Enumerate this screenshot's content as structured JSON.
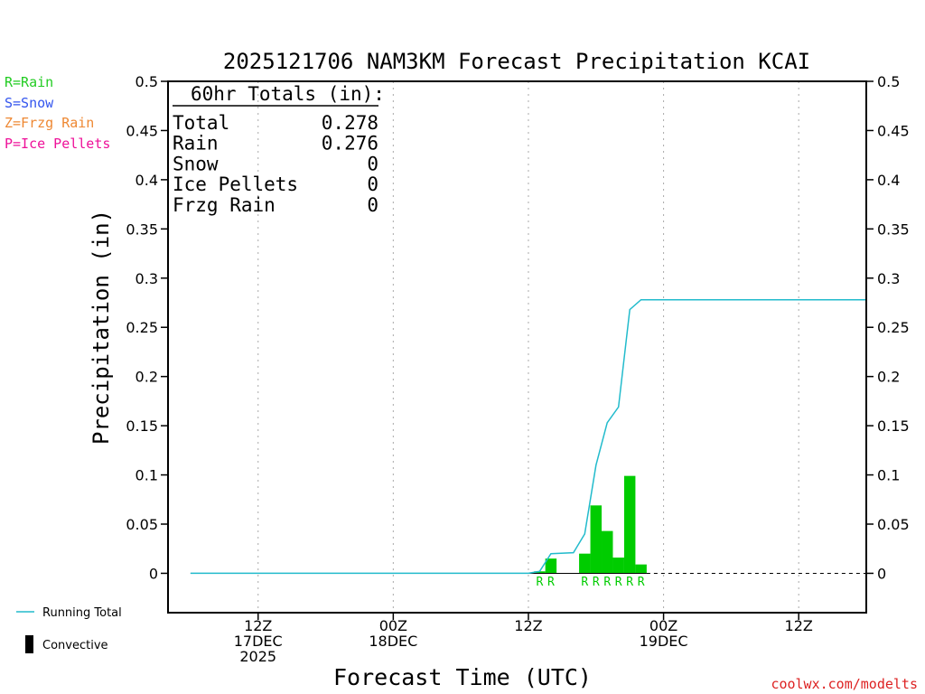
{
  "page": {
    "title": "2025121706 NAM3KM Forecast Precipitation KCAI",
    "xlabel": "Forecast Time (UTC)",
    "ylabel": "Precipitation (in)",
    "credit": "coolwx.com/modelts"
  },
  "ptype_legend": [
    {
      "label": "R=Rain",
      "color": "#22cc22"
    },
    {
      "label": "S=Snow",
      "color": "#3355ee"
    },
    {
      "label": "Z=Frzg Rain",
      "color": "#ee8833"
    },
    {
      "label": "P=Ice Pellets",
      "color": "#ee1199"
    }
  ],
  "series_legend": {
    "running_total": "Running Total",
    "convective": "Convective"
  },
  "totals": {
    "heading": "60hr Totals (in):",
    "rows": [
      {
        "label": "Total",
        "value": "0.278"
      },
      {
        "label": "Rain",
        "value": "0.276"
      },
      {
        "label": "Snow",
        "value": "0"
      },
      {
        "label": "Ice Pellets",
        "value": "0"
      },
      {
        "label": "Frzg Rain",
        "value": "0"
      }
    ]
  },
  "colors": {
    "rain_bar": "#00cc00",
    "running_total": "#22bbcc",
    "axis": "#000000",
    "grid": "#aaaaaa",
    "credit": "#dd2222"
  },
  "chart_data": {
    "type": "bar",
    "title": "2025121706 NAM3KM Forecast Precipitation KCAI",
    "xlabel": "Forecast Time (UTC)",
    "ylabel": "Precipitation (in)",
    "ylim": [
      -0.04,
      0.5
    ],
    "xlim_hours_since_init": [
      -2,
      60
    ],
    "yticks": [
      0,
      0.05,
      0.1,
      0.15,
      0.2,
      0.25,
      0.3,
      0.35,
      0.4,
      0.45,
      0.5
    ],
    "ytick_labels": [
      "0",
      "0.05",
      "0.1",
      "0.15",
      "0.2",
      "0.25",
      "0.3",
      "0.35",
      "0.4",
      "0.45",
      "0.5"
    ],
    "xticks": [
      {
        "hour": 6,
        "lines": [
          "12Z",
          "17DEC",
          "2025"
        ]
      },
      {
        "hour": 18,
        "lines": [
          "00Z",
          "18DEC"
        ]
      },
      {
        "hour": 30,
        "lines": [
          "12Z"
        ]
      },
      {
        "hour": 42,
        "lines": [
          "00Z",
          "19DEC"
        ]
      },
      {
        "hour": 54,
        "lines": [
          "12Z"
        ]
      }
    ],
    "grid": true,
    "bars": [
      {
        "hour": 31,
        "value": 0.002,
        "ptype": "R"
      },
      {
        "hour": 32,
        "value": 0.015,
        "ptype": "R"
      },
      {
        "hour": 35,
        "value": 0.02,
        "ptype": "R"
      },
      {
        "hour": 36,
        "value": 0.069,
        "ptype": "R"
      },
      {
        "hour": 37,
        "value": 0.043,
        "ptype": "R"
      },
      {
        "hour": 38,
        "value": 0.016,
        "ptype": "R"
      },
      {
        "hour": 39,
        "value": 0.099,
        "ptype": "R"
      },
      {
        "hour": 40,
        "value": 0.009,
        "ptype": "R"
      }
    ],
    "series": [
      {
        "name": "Running Total",
        "x": [
          0,
          30,
          31,
          32,
          34,
          35,
          36,
          37,
          38,
          39,
          40,
          60
        ],
        "y": [
          0,
          0,
          0.002,
          0.02,
          0.021,
          0.04,
          0.11,
          0.153,
          0.169,
          0.268,
          0.278,
          0.278
        ]
      }
    ]
  }
}
